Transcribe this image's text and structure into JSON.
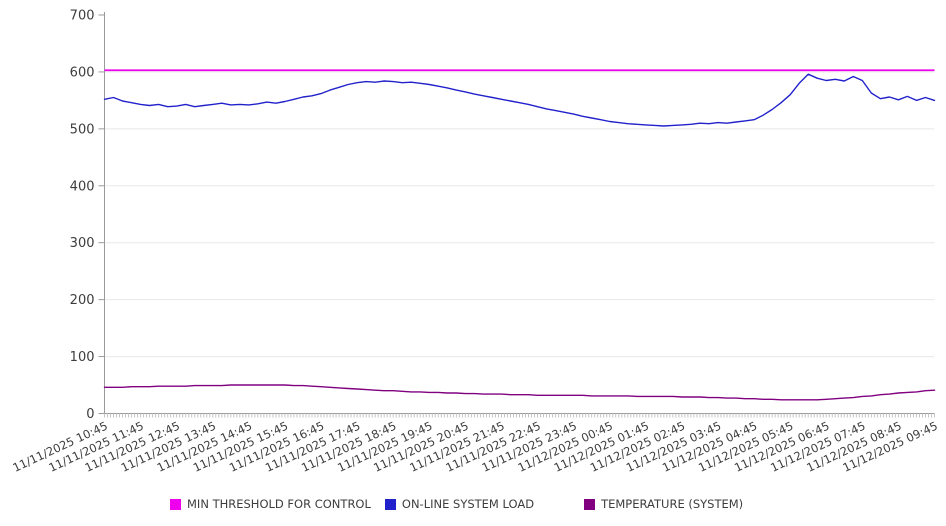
{
  "chart_data": {
    "type": "line",
    "title": "",
    "xlabel": "",
    "ylabel": "",
    "ylim": [
      0,
      700
    ],
    "y_ticks": [
      0,
      100,
      200,
      300,
      400,
      500,
      600,
      700
    ],
    "grid": "horizontal",
    "legend_position": "bottom",
    "x_interval_minutes": 15,
    "minor_tick_count": 277,
    "x_tick_labels": [
      "11/11/2025 10:45",
      "11/11/2025 11:45",
      "11/11/2025 12:45",
      "11/11/2025 13:45",
      "11/11/2025 14:45",
      "11/11/2025 15:45",
      "11/11/2025 16:45",
      "11/11/2025 17:45",
      "11/11/2025 18:45",
      "11/11/2025 19:45",
      "11/11/2025 20:45",
      "11/11/2025 21:45",
      "11/11/2025 22:45",
      "11/11/2025 23:45",
      "11/12/2025 00:45",
      "11/12/2025 01:45",
      "11/12/2025 02:45",
      "11/12/2025 03:45",
      "11/12/2025 04:45",
      "11/12/2025 05:45",
      "11/12/2025 06:45",
      "11/12/2025 07:45",
      "11/12/2025 08:45",
      "11/12/2025 09:45"
    ],
    "colors": {
      "grid": "#e8e8e8",
      "axis": "#9a9a9a",
      "minor_tick": "#c4c4c4",
      "text": "#3d3d3d"
    },
    "series": [
      {
        "name": "MIN THRESHOLD FOR CONTROL",
        "color": "#EE00EE",
        "type": "threshold",
        "value": 603
      },
      {
        "name": "ON-LINE SYSTEM LOAD",
        "color": "#2222CC",
        "type": "line",
        "values": [
          552,
          555,
          549,
          546,
          543,
          541,
          543,
          539,
          540,
          543,
          539,
          541,
          543,
          545,
          542,
          543,
          542,
          544,
          547,
          545,
          548,
          552,
          556,
          558,
          562,
          568,
          573,
          578,
          581,
          583,
          582,
          584,
          583,
          581,
          582,
          580,
          578,
          575,
          572,
          568,
          565,
          561,
          558,
          555,
          552,
          549,
          546,
          543,
          539,
          535,
          532,
          529,
          526,
          522,
          519,
          516,
          513,
          511,
          509,
          508,
          507,
          506,
          505,
          506,
          507,
          508,
          510,
          509,
          511,
          510,
          512,
          514,
          516,
          524,
          534,
          546,
          560,
          580,
          596,
          589,
          585,
          587,
          584,
          592,
          585,
          563,
          553,
          556,
          551,
          557,
          550,
          555,
          550
        ]
      },
      {
        "name": "TEMPERATURE (SYSTEM)",
        "color": "#800080",
        "type": "line",
        "values": [
          46,
          46,
          46,
          47,
          47,
          47,
          48,
          48,
          48,
          48,
          49,
          49,
          49,
          49,
          50,
          50,
          50,
          50,
          50,
          50,
          50,
          49,
          49,
          48,
          47,
          46,
          45,
          44,
          43,
          42,
          41,
          40,
          40,
          39,
          38,
          38,
          37,
          37,
          36,
          36,
          35,
          35,
          34,
          34,
          34,
          33,
          33,
          33,
          32,
          32,
          32,
          32,
          32,
          32,
          31,
          31,
          31,
          31,
          31,
          30,
          30,
          30,
          30,
          30,
          29,
          29,
          29,
          28,
          28,
          27,
          27,
          26,
          26,
          25,
          25,
          24,
          24,
          24,
          24,
          24,
          25,
          26,
          27,
          28,
          30,
          31,
          33,
          34,
          36,
          37,
          38,
          40,
          41
        ]
      }
    ]
  }
}
